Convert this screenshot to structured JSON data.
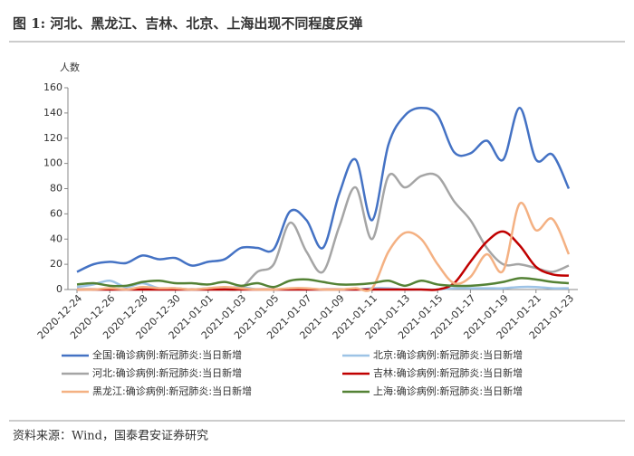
{
  "chart_data": {
    "type": "line",
    "title": "图 1: 河北、黑龙江、吉林、北京、上海出现不同程度反弹",
    "y_label": "人数",
    "source": "资料来源：Wind，国泰君安证券研究",
    "categories": [
      "2020-12-24",
      null,
      "2020-12-26",
      null,
      "2020-12-28",
      null,
      "2020-12-30",
      null,
      "2021-01-01",
      null,
      "2021-01-03",
      null,
      "2021-01-05",
      null,
      "2021-01-07",
      null,
      "2021-01-09",
      null,
      "2021-01-11",
      null,
      "2021-01-13",
      null,
      "2021-01-15",
      null,
      "2021-01-17",
      null,
      "2021-01-19",
      null,
      "2021-01-21",
      null,
      "2021-01-23"
    ],
    "ylim": [
      0,
      160
    ],
    "yticks": [
      0,
      20,
      40,
      60,
      80,
      100,
      120,
      140,
      160
    ],
    "grid": false,
    "series": [
      {
        "name": "全国:确诊病例:新冠肺炎:当日新增",
        "color": "#4472c4",
        "values": [
          14,
          20,
          22,
          21,
          27,
          24,
          25,
          19,
          22,
          24,
          33,
          33,
          32,
          62,
          55,
          33,
          76,
          103,
          55,
          115,
          138,
          144,
          138,
          109,
          108,
          118,
          103,
          144,
          103,
          107,
          80
        ]
      },
      {
        "name": "北京:确诊病例:新冠肺炎:当日新增",
        "color": "#9dc3e6",
        "values": [
          2,
          4,
          7,
          2,
          5,
          1,
          1,
          0,
          1,
          1,
          2,
          0,
          0,
          0,
          0,
          0,
          0,
          0,
          1,
          1,
          0,
          0,
          0,
          1,
          1,
          1,
          1,
          2,
          2,
          1,
          1
        ]
      },
      {
        "name": "河北:确诊病例:新冠肺炎:当日新增",
        "color": "#a5a5a5",
        "values": [
          0,
          0,
          0,
          0,
          0,
          0,
          0,
          0,
          0,
          0,
          1,
          14,
          20,
          53,
          30,
          14,
          50,
          81,
          40,
          90,
          81,
          90,
          90,
          70,
          55,
          33,
          20,
          20,
          17,
          14,
          19
        ]
      },
      {
        "name": "吉林:确诊病例:新冠肺炎:当日新增",
        "color": "#c00000",
        "values": [
          0,
          0,
          0,
          0,
          0,
          0,
          0,
          0,
          0,
          0,
          0,
          0,
          0,
          0,
          0,
          0,
          0,
          0,
          0,
          0,
          0,
          0,
          0,
          5,
          22,
          38,
          46,
          35,
          18,
          12,
          11
        ]
      },
      {
        "name": "黑龙江:确诊病例:新冠肺炎:当日新增",
        "color": "#f4b183",
        "values": [
          0,
          0,
          1,
          0,
          2,
          1,
          1,
          0,
          1,
          2,
          1,
          0,
          0,
          1,
          1,
          0,
          0,
          1,
          1,
          30,
          45,
          40,
          20,
          5,
          10,
          28,
          15,
          68,
          47,
          56,
          28
        ]
      },
      {
        "name": "上海:确诊病例:新冠肺炎:当日新增",
        "color": "#548235",
        "values": [
          4,
          5,
          3,
          3,
          6,
          7,
          5,
          5,
          4,
          6,
          3,
          5,
          2,
          7,
          8,
          6,
          4,
          4,
          5,
          7,
          3,
          7,
          4,
          3,
          3,
          4,
          6,
          9,
          8,
          6,
          5
        ]
      }
    ]
  }
}
